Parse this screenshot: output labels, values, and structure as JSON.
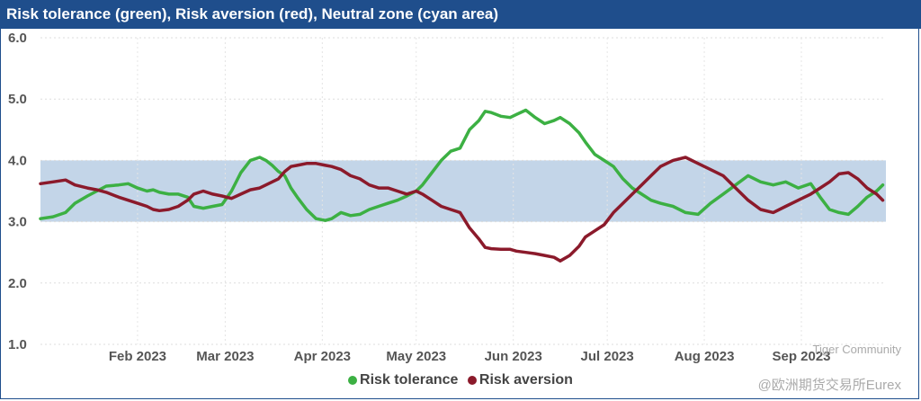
{
  "chart_data": {
    "type": "line",
    "title": "Risk tolerance (green), Risk aversion (red), Neutral zone (cyan area)",
    "ylim": [
      1.0,
      6.0
    ],
    "y_ticks": [
      "6.0",
      "5.0",
      "4.0",
      "3.0",
      "2.0",
      "1.0"
    ],
    "x_range": [
      0,
      270
    ],
    "x_ticks": [
      {
        "label": "Feb 2023",
        "x": 31
      },
      {
        "label": "Mar 2023",
        "x": 59
      },
      {
        "label": "Apr 2023",
        "x": 90
      },
      {
        "label": "May 2023",
        "x": 120
      },
      {
        "label": "Jun 2023",
        "x": 151
      },
      {
        "label": "Jul 2023",
        "x": 181
      },
      {
        "label": "Aug 2023",
        "x": 212
      },
      {
        "label": "Sep 2023",
        "x": 243
      }
    ],
    "neutral_zone": [
      3.0,
      4.0
    ],
    "colors": {
      "tolerance": "#3cb043",
      "aversion": "#8b1a2b",
      "zone": "#c3d5e8",
      "title_bg": "#1f4e8c"
    },
    "series": [
      {
        "name": "Risk tolerance",
        "x": [
          0,
          4,
          8,
          11,
          15,
          18,
          21,
          25,
          28,
          31,
          34,
          36,
          38,
          41,
          44,
          47,
          49,
          52,
          55,
          58,
          61,
          64,
          67,
          70,
          72,
          74,
          76,
          78,
          80,
          82,
          85,
          88,
          91,
          93,
          96,
          99,
          102,
          105,
          108,
          111,
          114,
          117,
          120,
          122,
          125,
          128,
          131,
          134,
          137,
          140,
          142,
          144,
          147,
          150,
          152,
          155,
          158,
          161,
          164,
          166,
          169,
          172,
          174,
          177,
          180,
          183,
          186,
          189,
          192,
          195,
          198,
          202,
          206,
          210,
          214,
          218,
          222,
          226,
          230,
          234,
          238,
          242,
          246,
          249,
          252,
          255,
          258,
          261,
          264,
          267,
          269
        ],
        "values": [
          3.05,
          3.08,
          3.15,
          3.3,
          3.42,
          3.5,
          3.58,
          3.6,
          3.62,
          3.55,
          3.5,
          3.52,
          3.48,
          3.45,
          3.45,
          3.4,
          3.25,
          3.22,
          3.25,
          3.28,
          3.5,
          3.8,
          4.0,
          4.05,
          4.0,
          3.92,
          3.82,
          3.75,
          3.55,
          3.4,
          3.2,
          3.05,
          3.02,
          3.05,
          3.15,
          3.1,
          3.12,
          3.2,
          3.25,
          3.3,
          3.35,
          3.42,
          3.5,
          3.6,
          3.8,
          4.0,
          4.15,
          4.2,
          4.5,
          4.65,
          4.8,
          4.78,
          4.72,
          4.7,
          4.75,
          4.82,
          4.7,
          4.6,
          4.65,
          4.7,
          4.6,
          4.45,
          4.3,
          4.1,
          4.0,
          3.9,
          3.7,
          3.55,
          3.45,
          3.35,
          3.3,
          3.25,
          3.15,
          3.12,
          3.3,
          3.45,
          3.6,
          3.75,
          3.65,
          3.6,
          3.65,
          3.55,
          3.62,
          3.4,
          3.2,
          3.15,
          3.12,
          3.25,
          3.4,
          3.5,
          3.6
        ]
      },
      {
        "name": "Risk aversion",
        "x": [
          0,
          4,
          8,
          11,
          15,
          18,
          21,
          25,
          28,
          31,
          34,
          36,
          38,
          41,
          44,
          47,
          49,
          52,
          55,
          58,
          61,
          64,
          67,
          70,
          72,
          74,
          76,
          78,
          80,
          82,
          85,
          88,
          91,
          93,
          96,
          99,
          102,
          105,
          108,
          111,
          114,
          117,
          120,
          122,
          125,
          128,
          131,
          134,
          137,
          140,
          142,
          144,
          147,
          150,
          152,
          155,
          158,
          161,
          164,
          166,
          169,
          172,
          174,
          177,
          180,
          183,
          186,
          189,
          192,
          195,
          198,
          202,
          206,
          210,
          214,
          218,
          222,
          226,
          230,
          234,
          238,
          242,
          246,
          249,
          252,
          255,
          258,
          261,
          264,
          267,
          269
        ],
        "values": [
          3.62,
          3.65,
          3.68,
          3.6,
          3.55,
          3.52,
          3.48,
          3.4,
          3.35,
          3.3,
          3.25,
          3.2,
          3.18,
          3.2,
          3.25,
          3.35,
          3.45,
          3.5,
          3.45,
          3.42,
          3.38,
          3.45,
          3.52,
          3.55,
          3.6,
          3.65,
          3.7,
          3.82,
          3.9,
          3.92,
          3.95,
          3.95,
          3.92,
          3.9,
          3.85,
          3.75,
          3.7,
          3.6,
          3.55,
          3.55,
          3.5,
          3.45,
          3.5,
          3.45,
          3.35,
          3.25,
          3.2,
          3.15,
          2.9,
          2.72,
          2.58,
          2.56,
          2.55,
          2.55,
          2.52,
          2.5,
          2.48,
          2.45,
          2.42,
          2.36,
          2.45,
          2.6,
          2.75,
          2.85,
          2.95,
          3.15,
          3.3,
          3.45,
          3.6,
          3.75,
          3.9,
          4.0,
          4.05,
          3.95,
          3.85,
          3.75,
          3.55,
          3.35,
          3.2,
          3.15,
          3.25,
          3.35,
          3.45,
          3.55,
          3.65,
          3.78,
          3.8,
          3.7,
          3.55,
          3.45,
          3.35
        ]
      }
    ],
    "legend": [
      "Risk tolerance",
      "Risk aversion"
    ],
    "legend_position": "bottom-center"
  },
  "watermark": {
    "line1": "Tiger Community",
    "line2": "@欧洲期货交易所Eurex"
  }
}
